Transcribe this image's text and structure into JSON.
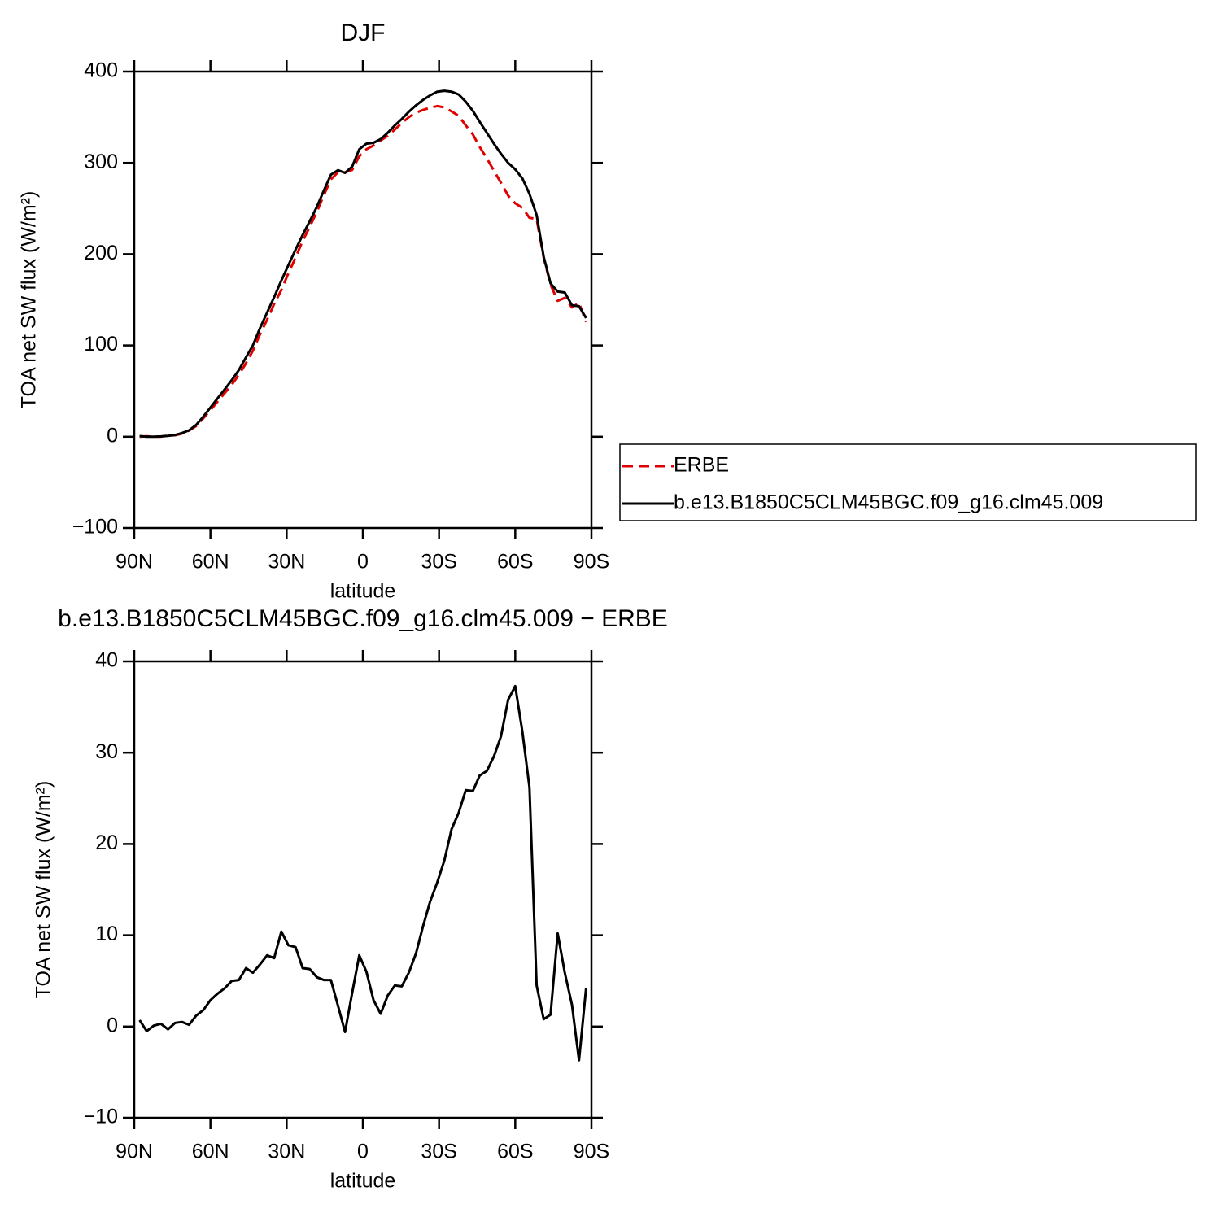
{
  "chart_data": [
    {
      "type": "line",
      "title": "DJF",
      "xlabel": "latitude",
      "ylabel": "TOA net SW flux (W/m²)",
      "x": [
        87.9,
        85.1,
        82.3,
        79.5,
        76.7,
        73.9,
        71.2,
        68.4,
        65.6,
        62.8,
        60.0,
        57.2,
        54.4,
        51.6,
        48.8,
        46.0,
        43.3,
        40.5,
        37.7,
        34.9,
        32.1,
        29.3,
        26.5,
        23.7,
        20.9,
        18.1,
        15.3,
        12.6,
        9.8,
        7.0,
        4.2,
        1.4,
        -1.4,
        -4.2,
        -7.0,
        -9.8,
        -12.6,
        -15.3,
        -18.1,
        -20.9,
        -23.7,
        -26.5,
        -29.3,
        -32.1,
        -34.9,
        -37.7,
        -40.5,
        -43.3,
        -46.0,
        -48.8,
        -51.6,
        -54.4,
        -57.2,
        -60.0,
        -62.8,
        -65.6,
        -68.4,
        -71.2,
        -73.9,
        -76.7,
        -79.5,
        -82.3,
        -85.1,
        -87.9
      ],
      "series": [
        {
          "name": "ERBE",
          "color": "#e00000",
          "linestyle": "dashed",
          "values": [
            0,
            0.5,
            0,
            0.1,
            1.3,
            1.6,
            3.5,
            6.8,
            11.8,
            20.2,
            29.1,
            38.4,
            47.8,
            57,
            67.9,
            80.6,
            94.1,
            112.2,
            128.2,
            145.5,
            160.6,
            179.1,
            196.3,
            214.6,
            229.7,
            246.6,
            264.9,
            281.9,
            289.7,
            289.6,
            292.3,
            307.2,
            315,
            319.1,
            324.6,
            329.6,
            336.5,
            343.6,
            350.1,
            355,
            358,
            360.3,
            362.2,
            360.8,
            356.4,
            351.6,
            341.1,
            331.2,
            317.5,
            305,
            291.4,
            278.2,
            264.2,
            255.7,
            250.7,
            239.8,
            238.5,
            196.2,
            166.7,
            148.8,
            152.1,
            141.6,
            146.7,
            125.8
          ]
        },
        {
          "name": "b.e13.B1850C5CLM45BGC.f09_g16.clm45.009",
          "color": "#000000",
          "linestyle": "solid",
          "values": [
            0.7,
            0,
            0.1,
            0.4,
            1,
            2,
            4,
            7,
            13,
            22,
            32,
            42,
            52,
            62,
            73,
            87,
            100,
            119,
            136,
            153,
            171,
            188,
            205,
            221,
            236,
            252,
            270,
            287,
            292,
            289,
            296,
            315,
            321,
            322,
            326,
            333,
            341,
            348,
            356,
            363,
            369,
            374,
            378,
            379,
            378,
            375,
            367,
            357,
            345,
            333,
            321,
            310,
            300,
            293,
            283,
            266,
            243,
            197,
            168,
            159,
            158,
            144,
            143,
            130
          ]
        }
      ],
      "xlim": [
        90,
        -90
      ],
      "xticks": [
        {
          "value": 90,
          "label": "90N"
        },
        {
          "value": 60,
          "label": "60N"
        },
        {
          "value": 30,
          "label": "30N"
        },
        0,
        {
          "value": -30,
          "label": "30S"
        },
        {
          "value": -60,
          "label": "60S"
        },
        {
          "value": -90,
          "label": "90S"
        }
      ],
      "ylim": [
        -100,
        400
      ],
      "yticks": [
        {
          "value": -100,
          "label": "−100"
        },
        0,
        100,
        200,
        300,
        400
      ],
      "legend": "right"
    },
    {
      "type": "line",
      "title": "b.e13.B1850C5CLM45BGC.f09_g16.clm45.009 − ERBE",
      "xlabel": "latitude",
      "ylabel": "TOA net SW flux (W/m²)",
      "x": [
        87.9,
        85.1,
        82.3,
        79.5,
        76.7,
        73.9,
        71.2,
        68.4,
        65.6,
        62.8,
        60.0,
        57.2,
        54.4,
        51.6,
        48.8,
        46.0,
        43.3,
        40.5,
        37.7,
        34.9,
        32.1,
        29.3,
        26.5,
        23.7,
        20.9,
        18.1,
        15.3,
        12.6,
        9.8,
        7.0,
        4.2,
        1.4,
        -1.4,
        -4.2,
        -7.0,
        -9.8,
        -12.6,
        -15.3,
        -18.1,
        -20.9,
        -23.7,
        -26.5,
        -29.3,
        -32.1,
        -34.9,
        -37.7,
        -40.5,
        -43.3,
        -46.0,
        -48.8,
        -51.6,
        -54.4,
        -57.2,
        -60.0,
        -62.8,
        -65.6,
        -68.4,
        -71.2,
        -73.9,
        -76.7,
        -79.5,
        -82.3,
        -85.1,
        -87.9
      ],
      "values": [
        0.7,
        -0.5,
        0.1,
        0.3,
        -0.3,
        0.4,
        0.5,
        0.2,
        1.2,
        1.8,
        2.9,
        3.6,
        4.2,
        5.0,
        5.1,
        6.4,
        5.9,
        6.8,
        7.8,
        7.5,
        10.4,
        8.9,
        8.7,
        6.4,
        6.3,
        5.4,
        5.1,
        5.1,
        2.3,
        -0.6,
        3.7,
        7.8,
        6.0,
        2.9,
        1.4,
        3.4,
        4.5,
        4.4,
        5.9,
        8.0,
        11.0,
        13.7,
        15.8,
        18.2,
        21.6,
        23.4,
        25.9,
        25.8,
        27.5,
        28.0,
        29.6,
        31.8,
        35.8,
        37.3,
        32.3,
        26.2,
        4.5,
        0.8,
        1.3,
        10.2,
        5.9,
        2.4,
        -3.7,
        4.2
      ],
      "color": "#000000",
      "xlim": [
        90,
        -90
      ],
      "xticks": [
        {
          "value": 90,
          "label": "90N"
        },
        {
          "value": 60,
          "label": "60N"
        },
        {
          "value": 30,
          "label": "30N"
        },
        0,
        {
          "value": -30,
          "label": "30S"
        },
        {
          "value": -60,
          "label": "60S"
        },
        {
          "value": -90,
          "label": "90S"
        }
      ],
      "ylim": [
        -10,
        40
      ],
      "yticks": [
        {
          "value": -10,
          "label": "−10"
        },
        0,
        10,
        20,
        30,
        40
      ]
    }
  ]
}
